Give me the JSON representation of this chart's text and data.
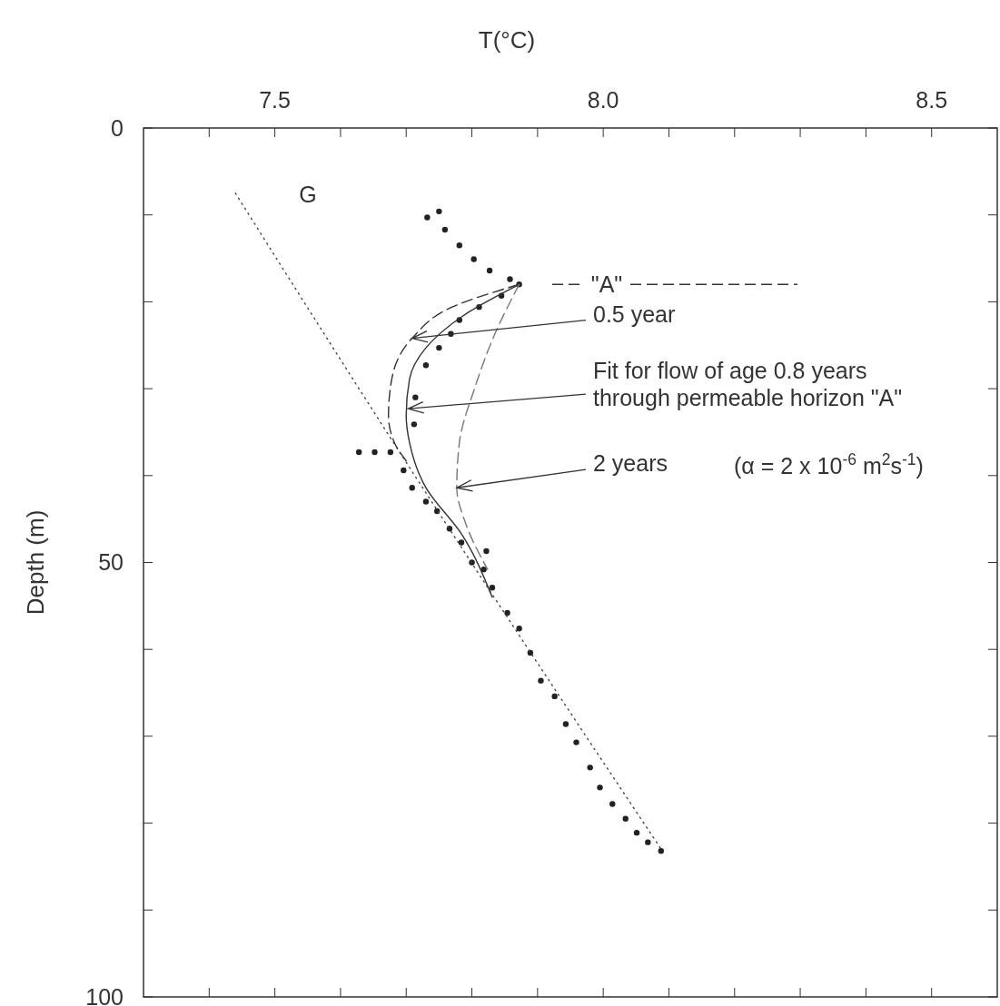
{
  "chart_data": {
    "type": "scatter",
    "xlabel": "T(°C)",
    "ylabel": "Depth (m)",
    "xlim": [
      7.3,
      8.6
    ],
    "ylim": [
      100,
      0
    ],
    "xticks": [
      {
        "value": 7.4,
        "label": null
      },
      7.5,
      {
        "value": 7.6,
        "label": null
      },
      {
        "value": 7.7,
        "label": null
      },
      {
        "value": 7.8,
        "label": null
      },
      {
        "value": 7.9,
        "label": null
      },
      {
        "value": 8.0,
        "label": "8.0"
      },
      {
        "value": 8.1,
        "label": null
      },
      {
        "value": 8.2,
        "label": null
      },
      {
        "value": 8.3,
        "label": null
      },
      {
        "value": 8.4,
        "label": null
      },
      8.5
    ],
    "yticks": [
      0,
      {
        "value": 10,
        "label": null
      },
      {
        "value": 20,
        "label": null
      },
      {
        "value": 30,
        "label": null
      },
      {
        "value": 40,
        "label": null
      },
      50,
      {
        "value": 60,
        "label": null
      },
      {
        "value": 70,
        "label": null
      },
      {
        "value": 80,
        "label": null
      },
      {
        "value": 90,
        "label": null
      },
      100
    ],
    "series": [
      {
        "marker": "circle",
        "color": "#222222",
        "x": [
          7.75,
          7.732,
          7.759,
          7.781,
          7.803,
          7.827,
          7.858,
          7.872,
          7.845,
          7.811,
          7.781,
          7.768,
          7.75,
          7.73,
          7.714,
          7.712,
          7.676,
          7.652,
          7.628,
          7.696,
          7.709,
          7.73,
          7.747,
          7.766,
          7.784,
          7.8,
          7.818,
          7.822,
          7.831,
          7.854,
          7.872,
          7.889,
          7.905,
          7.926,
          7.943,
          7.959,
          7.98,
          7.995,
          8.014,
          8.034,
          8.051,
          8.068,
          8.088
        ],
        "values": [
          9.6,
          10.3,
          11.7,
          13.5,
          15.1,
          16.4,
          17.4,
          18.0,
          19.3,
          20.6,
          22.1,
          23.7,
          25.3,
          27.3,
          31.0,
          34.1,
          37.3,
          37.3,
          37.3,
          39.4,
          41.4,
          43.0,
          44.1,
          46.1,
          47.7,
          50.0,
          50.8,
          48.7,
          52.9,
          55.8,
          57.6,
          60.4,
          63.6,
          65.4,
          68.6,
          70.7,
          73.6,
          75.9,
          77.8,
          79.5,
          81.1,
          82.2,
          83.2
        ]
      },
      {
        "type": "line",
        "name": "G",
        "color": "#444444",
        "line_style": "dotted",
        "x": [
          7.44,
          7.69,
          8.09
        ],
        "values": [
          7.5,
          37.3,
          83.2
        ]
      },
      {
        "type": "line",
        "color": "#333333",
        "line_style": "solid",
        "x": [
          7.872,
          7.797,
          7.73,
          7.705,
          7.7,
          7.705,
          7.73,
          7.784,
          7.831
        ],
        "values": [
          18.0,
          21.1,
          25.3,
          28.9,
          33.1,
          36.2,
          41.4,
          46.7,
          54.0
        ]
      },
      {
        "type": "line",
        "color": "#333333",
        "line_style": "dashed",
        "x": [
          7.872,
          7.77,
          7.709,
          7.678,
          7.673,
          7.682,
          7.7
        ],
        "values": [
          18.0,
          20.6,
          24.2,
          28.9,
          33.1,
          36.2,
          38.3
        ]
      },
      {
        "type": "line",
        "color": "#777777",
        "line_style": "dashed",
        "x": [
          7.872,
          7.835,
          7.804,
          7.781,
          7.777,
          7.791,
          7.824
        ],
        "values": [
          18.0,
          23.7,
          30.0,
          36.2,
          41.4,
          45.6,
          50.8
        ]
      }
    ],
    "ref_lines": [
      {
        "axis": "y",
        "value": 18,
        "label": "\"A\"",
        "line_style": "dashed",
        "color": "#333333"
      }
    ],
    "annotations": [
      {
        "text": "0.5 year",
        "x": 7.709,
        "y": 24.2
      },
      {
        "text": "Fit for flow of age 0.8 years through permeable horizon \"A\"",
        "x": 7.703,
        "y": 32.3
      },
      {
        "text": "2 years",
        "x": 7.777,
        "y": 41.4
      },
      "(α = 2 x 10$^{-6}$ m$^{2}$s$^{-1}$)"
    ]
  }
}
